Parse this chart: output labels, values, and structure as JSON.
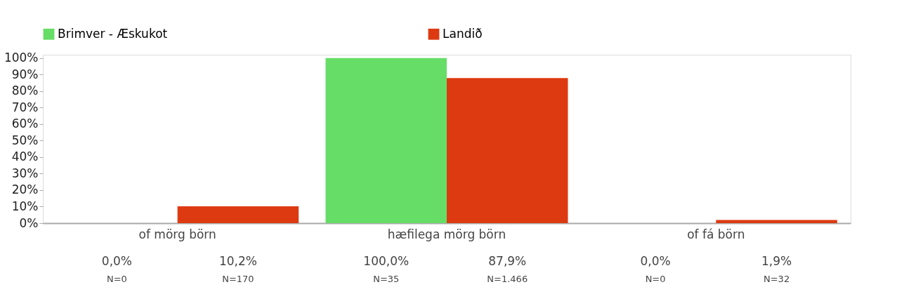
{
  "chart_data": {
    "type": "bar",
    "categories": [
      "of mörg börn",
      "hæfilega mörg börn",
      "of fá börn"
    ],
    "series": [
      {
        "name": "Brimver - Æskukot",
        "color": "#66dd66",
        "values": [
          0.0,
          100.0,
          0.0
        ],
        "value_labels": [
          "0,0%",
          "100,0%",
          "0,0%"
        ]
      },
      {
        "name": "Landið",
        "color": "#dd3a12",
        "values": [
          10.2,
          87.9,
          1.9
        ],
        "value_labels": [
          "10,2%",
          "87,9%",
          "1,9%"
        ]
      }
    ],
    "ylim": [
      0,
      102
    ],
    "yticks": [
      {
        "value": 0,
        "label": "0%"
      },
      {
        "value": 10,
        "label": "10%"
      },
      {
        "value": 20,
        "label": "20%"
      },
      {
        "value": 30,
        "label": "30%"
      },
      {
        "value": 40,
        "label": "40%"
      },
      {
        "value": 50,
        "label": "50%"
      },
      {
        "value": 60,
        "label": "60%"
      },
      {
        "value": 70,
        "label": "70%"
      },
      {
        "value": 80,
        "label": "80%"
      },
      {
        "value": 90,
        "label": "90%"
      },
      {
        "value": 100,
        "label": "100%"
      }
    ],
    "annotations": [
      "N=0",
      "N=170",
      "N=35",
      "N=1.466",
      "N=0",
      "N=32"
    ],
    "grid": false,
    "legend": "top"
  }
}
